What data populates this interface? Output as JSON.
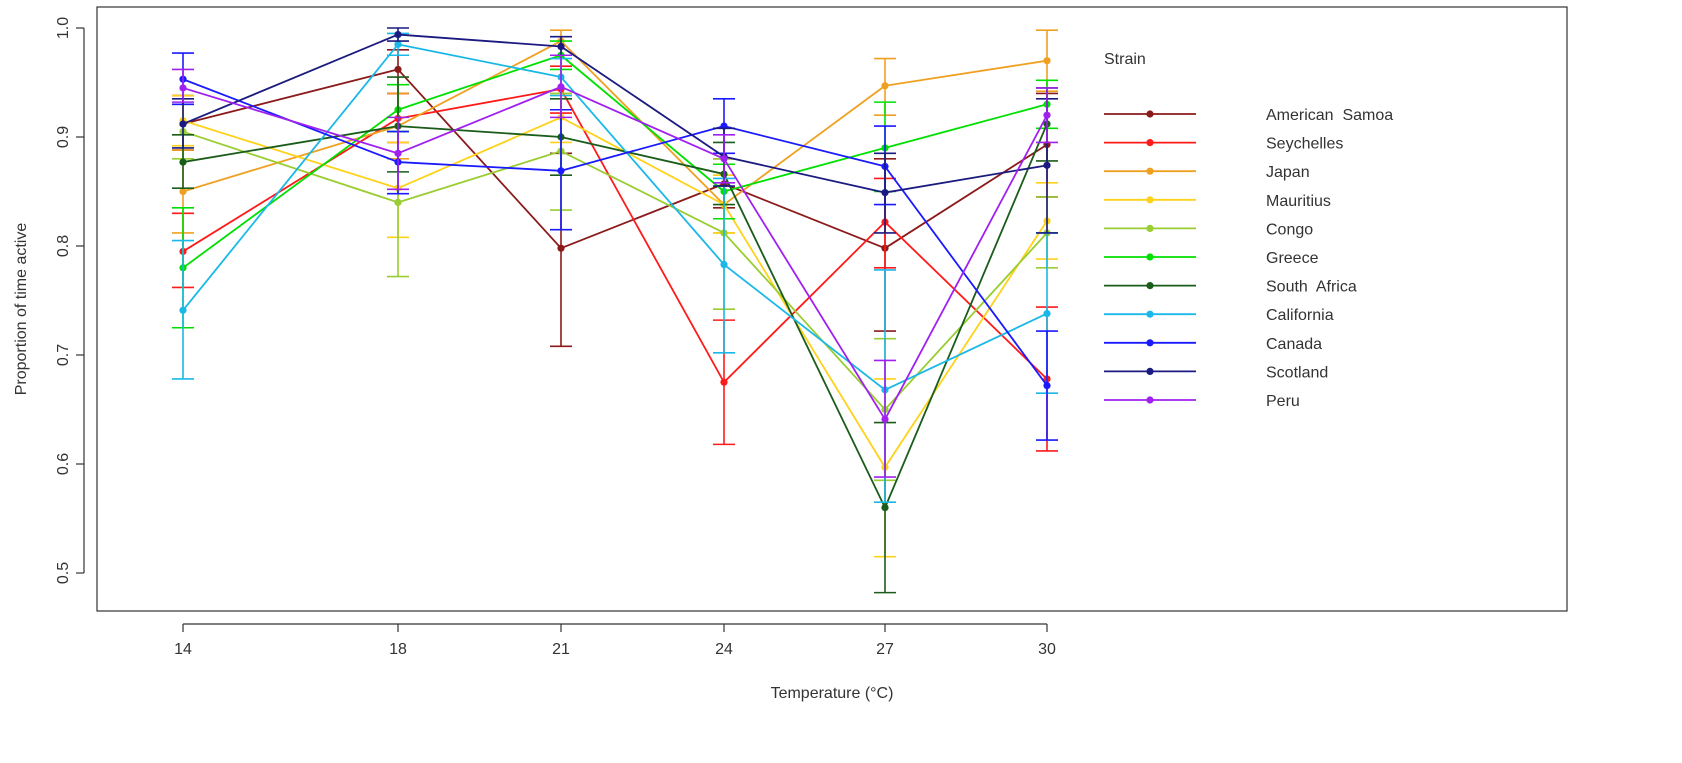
{
  "chart_data": {
    "type": "line",
    "title": "",
    "xlabel": "Temperature (°C)",
    "ylabel": "Proportion of time active",
    "x": [
      14,
      18,
      21,
      24,
      27,
      30
    ],
    "x_tick_labels": [
      "14",
      "18",
      "21",
      "24",
      "27",
      "30"
    ],
    "y_ticks": [
      0.5,
      0.6,
      0.7,
      0.8,
      0.9,
      1.0
    ],
    "y_tick_labels": [
      "0.5",
      "0.6",
      "0.7",
      "0.8",
      "0.9",
      "1.0"
    ],
    "ylim": [
      0.47,
      1.02
    ],
    "grid": false,
    "legend": {
      "title": "Strain",
      "placement": "right"
    },
    "error_bars": true,
    "series": [
      {
        "name": "American  Samoa",
        "color": "#8b1a1a",
        "values": [
          0.912,
          0.962,
          0.798,
          0.857,
          0.798,
          0.893
        ],
        "lower": [
          0.888,
          0.94,
          0.708,
          0.835,
          0.722,
          0.845
        ],
        "upper": [
          0.938,
          0.98,
          0.885,
          0.88,
          0.88,
          0.94
        ]
      },
      {
        "name": "Seychelles",
        "color": "#ff1a1a",
        "values": [
          0.795,
          0.917,
          0.944,
          0.675,
          0.822,
          0.678
        ],
        "lower": [
          0.762,
          0.895,
          0.922,
          0.618,
          0.78,
          0.612
        ],
        "upper": [
          0.83,
          0.94,
          0.965,
          0.732,
          0.862,
          0.744
        ]
      },
      {
        "name": "Japan",
        "color": "#f0a020",
        "values": [
          0.85,
          0.91,
          0.988,
          0.838,
          0.947,
          0.97
        ],
        "lower": [
          0.812,
          0.88,
          0.975,
          0.812,
          0.92,
          0.942
        ],
        "upper": [
          0.888,
          0.94,
          0.998,
          0.865,
          0.972,
          0.998
        ]
      },
      {
        "name": "Mauritius",
        "color": "#ffd21a",
        "values": [
          0.915,
          0.853,
          0.918,
          0.838,
          0.597,
          0.823
        ],
        "lower": [
          0.892,
          0.808,
          0.895,
          0.812,
          0.515,
          0.788
        ],
        "upper": [
          0.938,
          0.895,
          0.94,
          0.865,
          0.678,
          0.858
        ]
      },
      {
        "name": "Congo",
        "color": "#9acd32",
        "values": [
          0.905,
          0.84,
          0.887,
          0.812,
          0.65,
          0.812
        ],
        "lower": [
          0.88,
          0.772,
          0.833,
          0.742,
          0.585,
          0.78
        ],
        "upper": [
          0.93,
          0.905,
          0.94,
          0.88,
          0.715,
          0.845
        ]
      },
      {
        "name": "Greece",
        "color": "#00e000",
        "values": [
          0.78,
          0.925,
          0.975,
          0.85,
          0.89,
          0.93
        ],
        "lower": [
          0.725,
          0.905,
          0.962,
          0.825,
          0.85,
          0.908
        ],
        "upper": [
          0.835,
          0.948,
          0.988,
          0.875,
          0.932,
          0.952
        ]
      },
      {
        "name": "South  Africa",
        "color": "#1a5c1a",
        "values": [
          0.877,
          0.91,
          0.9,
          0.866,
          0.56,
          0.912
        ],
        "lower": [
          0.853,
          0.868,
          0.865,
          0.838,
          0.482,
          0.878
        ],
        "upper": [
          0.902,
          0.955,
          0.935,
          0.895,
          0.638,
          0.945
        ]
      },
      {
        "name": "California",
        "color": "#1ab8e8",
        "values": [
          0.741,
          0.985,
          0.955,
          0.783,
          0.668,
          0.738
        ],
        "lower": [
          0.678,
          0.975,
          0.938,
          0.702,
          0.565,
          0.665
        ],
        "upper": [
          0.805,
          0.995,
          0.972,
          0.862,
          0.778,
          0.812
        ]
      },
      {
        "name": "Canada",
        "color": "#1a1aff",
        "values": [
          0.953,
          0.877,
          0.869,
          0.91,
          0.873,
          0.672
        ],
        "lower": [
          0.93,
          0.848,
          0.815,
          0.885,
          0.838,
          0.622
        ],
        "upper": [
          0.977,
          0.905,
          0.925,
          0.935,
          0.91,
          0.722
        ]
      },
      {
        "name": "Scotland",
        "color": "#1a1a80",
        "values": [
          0.912,
          0.994,
          0.983,
          0.882,
          0.849,
          0.874
        ],
        "lower": [
          0.89,
          0.988,
          0.975,
          0.855,
          0.812,
          0.812
        ],
        "upper": [
          0.935,
          1.0,
          0.992,
          0.908,
          0.885,
          0.935
        ]
      },
      {
        "name": "Peru",
        "color": "#a020f0",
        "values": [
          0.945,
          0.885,
          0.946,
          0.88,
          0.641,
          0.92
        ],
        "lower": [
          0.932,
          0.852,
          0.918,
          0.858,
          0.588,
          0.895
        ],
        "upper": [
          0.962,
          0.918,
          0.975,
          0.902,
          0.695,
          0.945
        ]
      }
    ]
  }
}
